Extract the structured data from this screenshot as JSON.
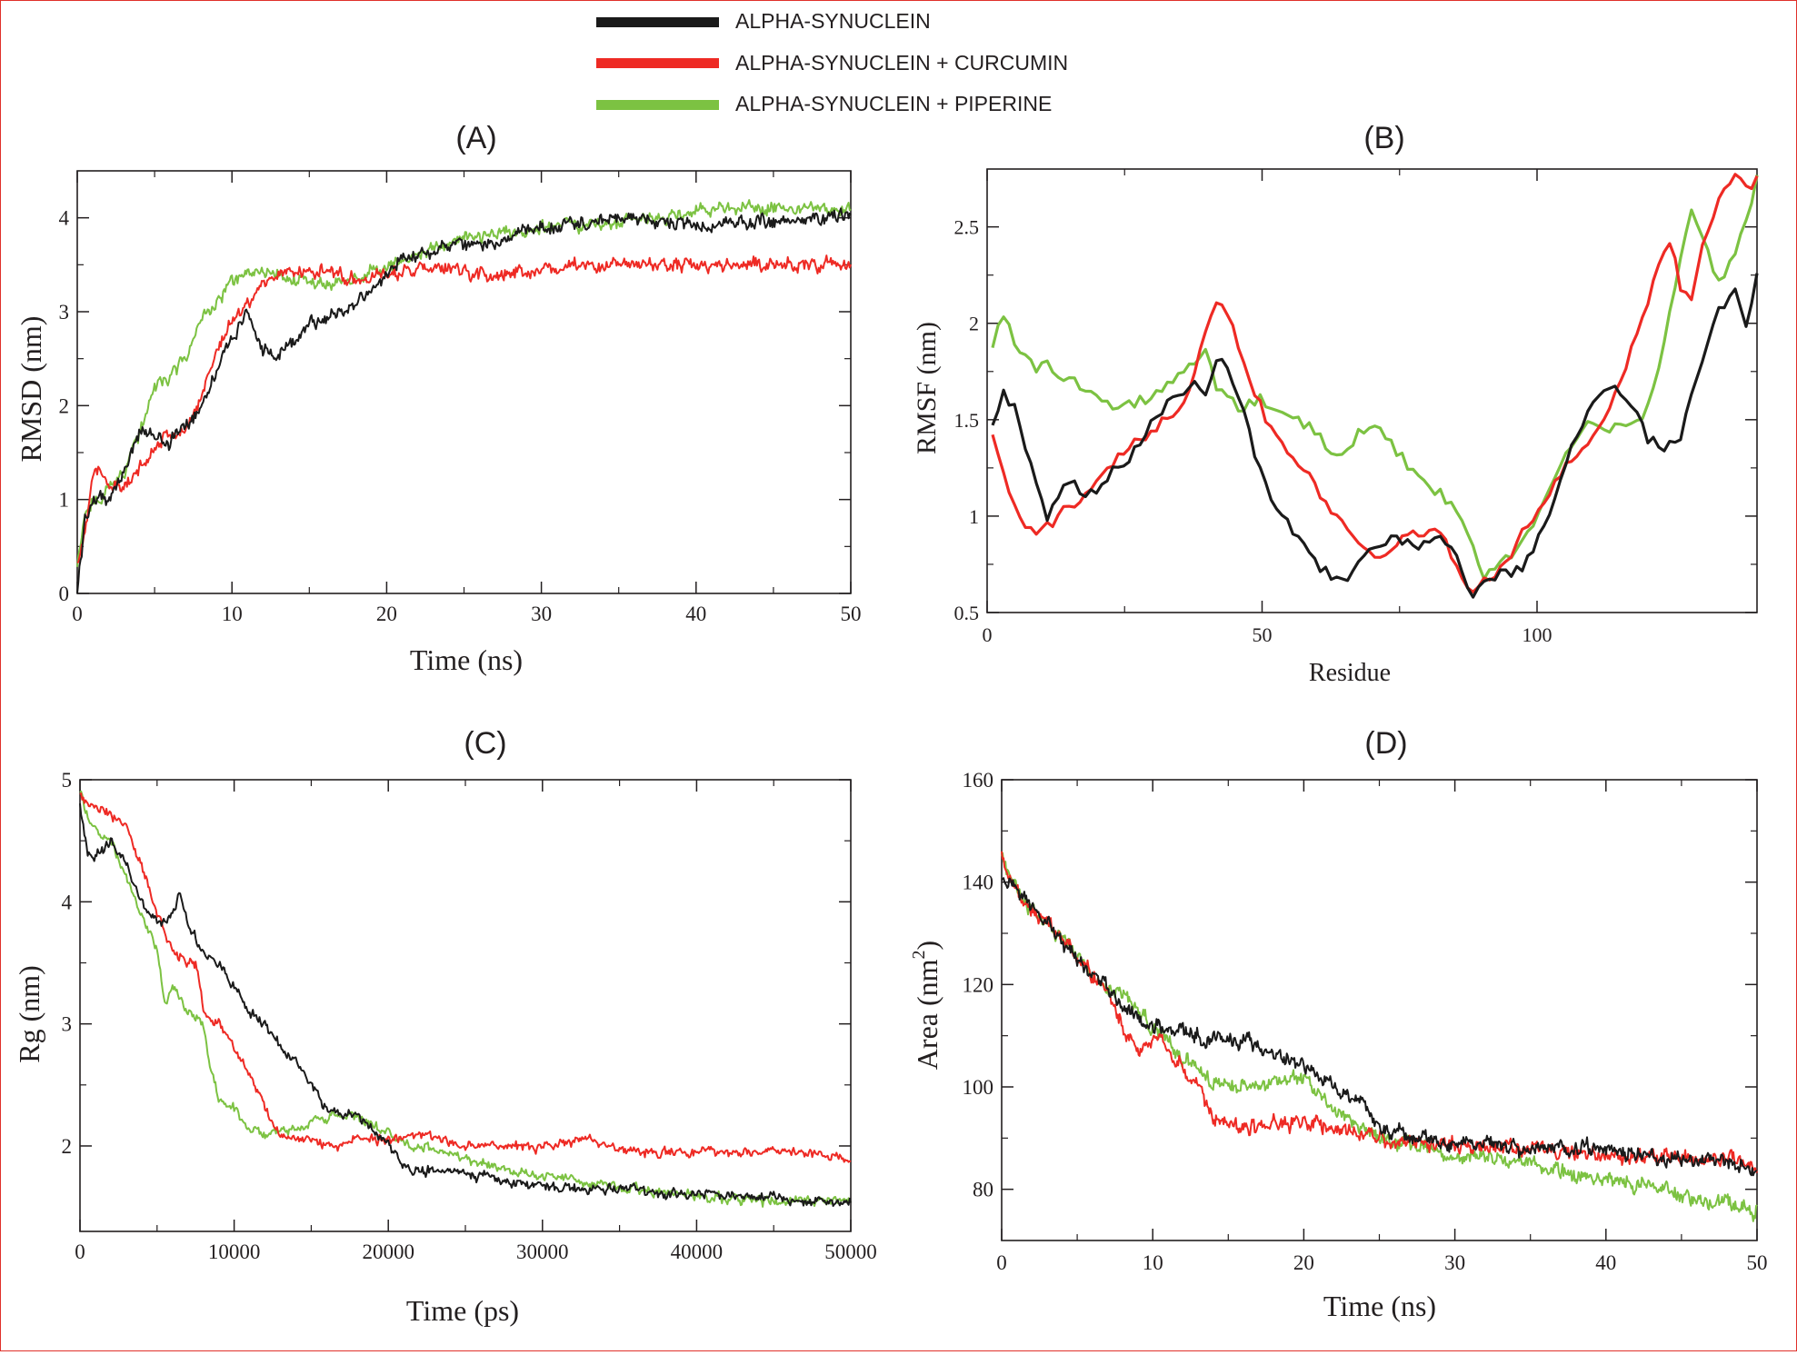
{
  "legend": {
    "entries": [
      {
        "label": "ALPHA-SYNUCLEIN",
        "color": "#1a1a1a"
      },
      {
        "label": "ALPHA-SYNUCLEIN + CURCUMIN",
        "color": "#ee2a24"
      },
      {
        "label": "ALPHA-SYNUCLEIN +  PIPERINE",
        "color": "#7cc242"
      }
    ]
  },
  "colors": {
    "apo": "#1a1a1a",
    "curcumin": "#ee2a24",
    "piperine": "#7cc242",
    "frame": "#e0302a"
  },
  "chart_data": [
    {
      "id": "A",
      "panel_label": "(A)",
      "type": "line",
      "xlabel": "Time (ns)",
      "ylabel": "RMSD (nm)",
      "xlim": [
        0,
        50
      ],
      "ylim": [
        0,
        4.5
      ],
      "xticks": [
        0,
        10,
        20,
        30,
        40,
        50
      ],
      "yticks": [
        0,
        1,
        2,
        3,
        4
      ],
      "xtick_labels": [
        "0",
        "10",
        "20",
        "30",
        "40",
        "50"
      ],
      "ytick_labels": [
        "0",
        "1",
        "2",
        "3",
        "4"
      ],
      "noise": 0.09,
      "samples": 700,
      "series": [
        {
          "name": "ALPHA-SYNUCLEIN",
          "x": [
            0,
            0.5,
            1,
            2,
            3,
            4,
            5,
            6,
            7,
            8,
            9,
            10,
            11,
            12,
            13,
            14,
            15,
            16,
            17,
            18,
            19,
            20,
            21,
            22,
            24,
            26,
            28,
            30,
            33,
            36,
            40,
            43,
            46,
            50
          ],
          "y": [
            0.0,
            0.8,
            1.0,
            1.0,
            1.3,
            1.7,
            1.7,
            1.6,
            1.8,
            2.0,
            2.4,
            2.7,
            3.0,
            2.6,
            2.5,
            2.7,
            2.9,
            2.9,
            3.0,
            3.1,
            3.2,
            3.4,
            3.6,
            3.6,
            3.7,
            3.7,
            3.8,
            3.9,
            3.95,
            4.0,
            3.9,
            3.95,
            3.95,
            4.05
          ]
        },
        {
          "name": "ALPHA-SYNUCLEIN + CURCUMIN",
          "x": [
            0,
            0.5,
            1,
            2,
            3,
            4,
            5,
            6,
            7,
            8,
            9,
            10,
            11,
            12,
            13,
            14,
            15,
            16,
            17,
            18,
            20,
            22,
            24,
            26,
            28,
            30,
            34,
            38,
            42,
            46,
            50
          ],
          "y": [
            0.3,
            0.7,
            1.3,
            1.2,
            1.1,
            1.3,
            1.6,
            1.7,
            1.7,
            2.1,
            2.6,
            2.9,
            3.1,
            3.3,
            3.4,
            3.45,
            3.4,
            3.45,
            3.4,
            3.35,
            3.4,
            3.45,
            3.45,
            3.4,
            3.4,
            3.45,
            3.5,
            3.5,
            3.5,
            3.5,
            3.5
          ]
        },
        {
          "name": "ALPHA-SYNUCLEIN +  PIPERINE",
          "x": [
            0,
            0.5,
            1,
            2,
            3,
            4,
            5,
            6,
            7,
            8,
            9,
            10,
            11,
            12,
            14,
            16,
            18,
            20,
            22,
            24,
            26,
            28,
            30,
            34,
            38,
            40,
            44,
            48,
            50
          ],
          "y": [
            0.3,
            0.8,
            1.0,
            1.1,
            1.3,
            1.7,
            2.2,
            2.3,
            2.5,
            2.9,
            3.1,
            3.3,
            3.4,
            3.4,
            3.35,
            3.3,
            3.35,
            3.5,
            3.6,
            3.75,
            3.8,
            3.85,
            3.9,
            3.95,
            4.0,
            4.1,
            4.1,
            4.1,
            4.1
          ]
        }
      ]
    },
    {
      "id": "B",
      "panel_label": "(B)",
      "type": "line",
      "xlabel": "Residue",
      "ylabel": "RMSF (nm)",
      "xlim": [
        0,
        140
      ],
      "ylim": [
        0.5,
        2.8
      ],
      "xticks": [
        0,
        50,
        100
      ],
      "yticks": [
        0.5,
        1,
        1.5,
        2,
        2.5
      ],
      "xtick_labels": [
        "0",
        "50",
        "100"
      ],
      "ytick_labels": [
        "0.5",
        "1",
        "1.5",
        "2",
        "2.5"
      ],
      "noise": 0.03,
      "samples": 140,
      "series": [
        {
          "name": "ALPHA-SYNUCLEIN",
          "x": [
            1,
            3,
            5,
            7,
            9,
            11,
            13,
            15,
            17,
            20,
            23,
            26,
            30,
            33,
            36,
            38,
            40,
            42,
            44,
            46,
            48,
            50,
            52,
            55,
            58,
            60,
            62,
            64,
            66,
            68,
            70,
            74,
            78,
            82,
            86,
            88,
            90,
            94,
            98,
            102,
            106,
            110,
            114,
            118,
            120,
            123,
            126,
            130,
            133,
            136,
            138,
            140
          ],
          "y": [
            1.5,
            1.65,
            1.55,
            1.35,
            1.15,
            1.0,
            1.1,
            1.2,
            1.1,
            1.15,
            1.25,
            1.3,
            1.5,
            1.6,
            1.65,
            1.7,
            1.65,
            1.85,
            1.75,
            1.6,
            1.4,
            1.2,
            1.05,
            0.95,
            0.85,
            0.75,
            0.7,
            0.65,
            0.7,
            0.75,
            0.85,
            0.9,
            0.85,
            0.9,
            0.75,
            0.6,
            0.65,
            0.7,
            0.75,
            1.0,
            1.35,
            1.6,
            1.7,
            1.55,
            1.4,
            1.35,
            1.4,
            1.8,
            2.05,
            2.2,
            2.0,
            2.25
          ]
        },
        {
          "name": "ALPHA-SYNUCLEIN + CURCUMIN",
          "x": [
            1,
            3,
            5,
            7,
            9,
            11,
            13,
            15,
            18,
            21,
            24,
            28,
            32,
            36,
            39,
            42,
            44,
            46,
            48,
            50,
            53,
            56,
            59,
            62,
            65,
            68,
            71,
            74,
            78,
            82,
            85,
            88,
            90,
            92,
            95,
            98,
            101,
            104,
            108,
            112,
            116,
            120,
            122,
            124,
            126,
            128,
            130,
            133,
            136,
            138,
            140
          ],
          "y": [
            1.45,
            1.2,
            1.05,
            0.95,
            0.9,
            0.95,
            1.0,
            1.05,
            1.1,
            1.2,
            1.3,
            1.4,
            1.5,
            1.6,
            1.9,
            2.15,
            2.05,
            1.85,
            1.7,
            1.55,
            1.4,
            1.3,
            1.2,
            1.05,
            0.95,
            0.85,
            0.8,
            0.85,
            0.9,
            0.95,
            0.75,
            0.6,
            0.65,
            0.7,
            0.8,
            0.95,
            1.05,
            1.2,
            1.35,
            1.5,
            1.75,
            2.1,
            2.3,
            2.45,
            2.2,
            2.1,
            2.4,
            2.65,
            2.75,
            2.7,
            2.75
          ]
        },
        {
          "name": "ALPHA-SYNUCLEIN +  PIPERINE",
          "x": [
            1,
            3,
            5,
            7,
            9,
            11,
            13,
            15,
            18,
            21,
            24,
            28,
            32,
            36,
            38,
            40,
            42,
            44,
            46,
            48,
            50,
            53,
            56,
            59,
            62,
            65,
            68,
            71,
            74,
            77,
            80,
            83,
            86,
            88,
            90,
            92,
            95,
            98,
            101,
            104,
            107,
            110,
            113,
            116,
            119,
            122,
            124,
            126,
            128,
            130,
            133,
            136,
            138,
            140
          ],
          "y": [
            1.9,
            2.05,
            1.9,
            1.85,
            1.75,
            1.8,
            1.7,
            1.75,
            1.65,
            1.6,
            1.55,
            1.6,
            1.65,
            1.75,
            1.8,
            1.85,
            1.65,
            1.6,
            1.55,
            1.6,
            1.6,
            1.55,
            1.5,
            1.45,
            1.35,
            1.3,
            1.45,
            1.5,
            1.35,
            1.25,
            1.15,
            1.1,
            1.0,
            0.85,
            0.7,
            0.7,
            0.8,
            0.9,
            1.05,
            1.25,
            1.4,
            1.5,
            1.45,
            1.45,
            1.5,
            1.75,
            2.05,
            2.3,
            2.6,
            2.45,
            2.2,
            2.35,
            2.55,
            2.75
          ]
        }
      ]
    },
    {
      "id": "C",
      "panel_label": "(C)",
      "type": "line",
      "xlabel": "Time (ps)",
      "ylabel": "Rg (nm)",
      "xlim": [
        0,
        50000
      ],
      "ylim": [
        1.3,
        5.0
      ],
      "xticks": [
        0,
        10000,
        20000,
        30000,
        40000,
        50000
      ],
      "yticks": [
        2,
        3,
        4,
        5
      ],
      "xtick_labels": [
        "0",
        "10000",
        "20000",
        "30000",
        "40000",
        "50000"
      ],
      "ytick_labels": [
        "2",
        "3",
        "4",
        "5"
      ],
      "noise": 0.05,
      "samples": 700,
      "series": [
        {
          "name": "ALPHA-SYNUCLEIN",
          "x": [
            0,
            500,
            1000,
            2000,
            3000,
            4000,
            5000,
            6000,
            6500,
            7000,
            8000,
            9000,
            10000,
            11000,
            12000,
            13000,
            14000,
            15000,
            16000,
            17000,
            18000,
            19000,
            20000,
            21000,
            22000,
            24000,
            26000,
            28000,
            30000,
            32000,
            35000,
            38000,
            40000,
            42000,
            45000,
            48000,
            50000
          ],
          "y": [
            4.8,
            4.4,
            4.35,
            4.5,
            4.3,
            4.0,
            3.8,
            3.9,
            4.1,
            3.8,
            3.6,
            3.5,
            3.3,
            3.1,
            3.0,
            2.8,
            2.7,
            2.5,
            2.3,
            2.25,
            2.25,
            2.15,
            2.0,
            1.85,
            1.8,
            1.8,
            1.75,
            1.7,
            1.68,
            1.65,
            1.65,
            1.6,
            1.62,
            1.6,
            1.58,
            1.55,
            1.55
          ]
        },
        {
          "name": "ALPHA-SYNUCLEIN + CURCUMIN",
          "x": [
            0,
            500,
            1000,
            2000,
            3000,
            4000,
            5000,
            6000,
            7000,
            7500,
            8000,
            8500,
            9000,
            10000,
            11000,
            12000,
            13000,
            14000,
            15000,
            16000,
            17000,
            18000,
            20000,
            22000,
            25000,
            28000,
            30000,
            33000,
            36000,
            40000,
            44000,
            47000,
            50000
          ],
          "y": [
            4.9,
            4.8,
            4.75,
            4.7,
            4.65,
            4.3,
            3.9,
            3.6,
            3.5,
            3.5,
            3.1,
            3.0,
            3.0,
            2.8,
            2.6,
            2.3,
            2.1,
            2.05,
            2.05,
            2.0,
            2.0,
            2.05,
            2.05,
            2.1,
            2.0,
            2.0,
            2.0,
            2.05,
            1.95,
            1.95,
            1.95,
            1.95,
            1.9
          ]
        },
        {
          "name": "ALPHA-SYNUCLEIN +  PIPERINE",
          "x": [
            0,
            500,
            1000,
            2000,
            3000,
            4000,
            5000,
            5500,
            6000,
            7000,
            8000,
            8500,
            9000,
            10000,
            11000,
            12000,
            14000,
            16000,
            18000,
            20000,
            22000,
            24000,
            26000,
            28000,
            30000,
            33000,
            36000,
            40000,
            44000,
            47000,
            50000
          ],
          "y": [
            4.9,
            4.7,
            4.6,
            4.5,
            4.2,
            3.9,
            3.6,
            3.2,
            3.3,
            3.1,
            3.0,
            2.6,
            2.4,
            2.3,
            2.15,
            2.1,
            2.15,
            2.25,
            2.25,
            2.1,
            2.0,
            1.95,
            1.85,
            1.8,
            1.75,
            1.7,
            1.65,
            1.6,
            1.55,
            1.55,
            1.55
          ]
        }
      ]
    },
    {
      "id": "D",
      "panel_label": "(D)",
      "type": "line",
      "xlabel": "Time (ns)",
      "ylabel": "Area (nm",
      "ylabel_superscript": "2",
      "ylabel_suffix": ")",
      "xlim": [
        0,
        50
      ],
      "ylim": [
        70,
        160
      ],
      "xticks": [
        0,
        10,
        20,
        30,
        40,
        50
      ],
      "yticks": [
        80,
        100,
        120,
        140,
        160
      ],
      "xtick_labels": [
        "0",
        "10",
        "20",
        "30",
        "40",
        "50"
      ],
      "ytick_labels": [
        "80",
        "100",
        "120",
        "140",
        "160"
      ],
      "noise": 1.8,
      "samples": 800,
      "series": [
        {
          "name": "ALPHA-SYNUCLEIN",
          "x": [
            0,
            1,
            2,
            4,
            6,
            8,
            10,
            12,
            14,
            16,
            18,
            20,
            22,
            24,
            25,
            26,
            28,
            30,
            32,
            34,
            36,
            38,
            40,
            42,
            44,
            46,
            48,
            50
          ],
          "y": [
            140,
            139,
            135,
            128,
            122,
            116,
            112,
            111,
            109,
            109,
            107,
            104,
            100,
            97,
            92,
            91,
            90,
            89,
            89,
            88,
            88,
            88,
            88,
            87,
            86,
            86,
            85,
            84
          ]
        },
        {
          "name": "ALPHA-SYNUCLEIN + CURCUMIN",
          "x": [
            0,
            1,
            2,
            4,
            6,
            7,
            8,
            9,
            10,
            11,
            12,
            13,
            14,
            16,
            18,
            20,
            22,
            24,
            26,
            28,
            30,
            34,
            38,
            42,
            46,
            50
          ],
          "y": [
            145,
            138,
            134,
            129,
            122,
            119,
            112,
            107,
            110,
            107,
            104,
            100,
            94,
            92,
            93,
            93,
            92,
            91,
            89,
            89,
            89,
            88,
            87,
            86,
            86,
            85
          ]
        },
        {
          "name": "ALPHA-SYNUCLEIN +  PIPERINE",
          "x": [
            0,
            1,
            2,
            4,
            6,
            8,
            10,
            12,
            13,
            14,
            16,
            18,
            20,
            21,
            22,
            24,
            26,
            28,
            30,
            32,
            35,
            38,
            40,
            42,
            44,
            46,
            48,
            50
          ],
          "y": [
            145,
            138,
            134,
            129,
            122,
            118,
            112,
            106,
            104,
            101,
            100,
            101,
            102,
            99,
            95,
            92,
            89,
            88,
            86,
            86,
            85,
            83,
            82,
            81,
            80,
            78,
            77,
            76
          ]
        }
      ]
    }
  ]
}
